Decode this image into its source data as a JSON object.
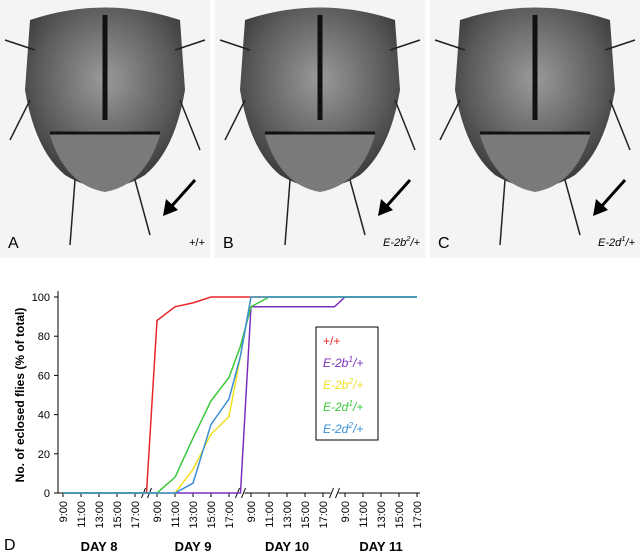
{
  "panels": [
    {
      "letter": "A",
      "genotype": {
        "text": "+/+",
        "sup": null,
        "suffix": null
      }
    },
    {
      "letter": "B",
      "genotype": {
        "text": "E-2b",
        "sup": "2",
        "suffix": "/+"
      }
    },
    {
      "letter": "C",
      "genotype": {
        "text": "E-2d",
        "sup": "1",
        "suffix": "/+"
      }
    }
  ],
  "chart_data": {
    "type": "line",
    "panel_letter": "D",
    "y_label": "No. of eclosed flies (% of total)",
    "categories": [
      "9:00",
      "11:00",
      "13:00",
      "15:00",
      "17:00",
      null,
      "9:00",
      "11:00",
      "13:00",
      "15:00",
      "17:00",
      null,
      "9:00",
      "11:00",
      "13:00",
      "15:00",
      "17:00",
      null,
      "9:00",
      "11:00",
      "13:00",
      "15:00",
      "17:00"
    ],
    "day_labels": [
      "DAY 8",
      "DAY 9",
      "DAY 10",
      "DAY 11"
    ],
    "ylim": [
      0,
      100
    ],
    "yticks": [
      0,
      20,
      40,
      60,
      80,
      100
    ],
    "series": [
      {
        "name": {
          "text": "+/+",
          "sup": null,
          "suffix": null
        },
        "color": "#e8262a",
        "values": [
          0,
          0,
          0,
          0,
          0,
          0,
          88,
          95,
          97,
          100,
          100,
          100,
          100,
          100,
          100,
          100,
          100,
          100,
          100,
          100,
          100,
          100,
          100
        ]
      },
      {
        "name": {
          "text": "E-2b",
          "sup": "1",
          "suffix": "/+"
        },
        "color": "#7b2fbe",
        "values": [
          0,
          0,
          0,
          0,
          0,
          0,
          0,
          0,
          0,
          0,
          0,
          0,
          95,
          95,
          95,
          95,
          95,
          95,
          100,
          100,
          100,
          100,
          100
        ]
      },
      {
        "name": {
          "text": "E-2b",
          "sup": "2",
          "suffix": "/+"
        },
        "color": "#f0e020",
        "values": [
          0,
          0,
          0,
          0,
          0,
          0,
          0,
          0,
          12,
          30,
          39,
          70,
          100,
          100,
          100,
          100,
          100,
          100,
          100,
          100,
          100,
          100,
          100
        ]
      },
      {
        "name": {
          "text": "E-2d",
          "sup": "1",
          "suffix": "/+"
        },
        "color": "#3cc83c",
        "values": [
          0,
          0,
          0,
          0,
          0,
          0,
          0,
          8,
          28,
          47,
          59,
          75,
          95,
          100,
          100,
          100,
          100,
          100,
          100,
          100,
          100,
          100,
          100
        ]
      },
      {
        "name": {
          "text": "E-2d",
          "sup": "2",
          "suffix": "/+"
        },
        "color": "#3a8fd8",
        "values": [
          0,
          0,
          0,
          0,
          0,
          0,
          0,
          0,
          5,
          35,
          48,
          70,
          100,
          100,
          100,
          100,
          100,
          100,
          100,
          100,
          100,
          100,
          100
        ]
      }
    ]
  }
}
